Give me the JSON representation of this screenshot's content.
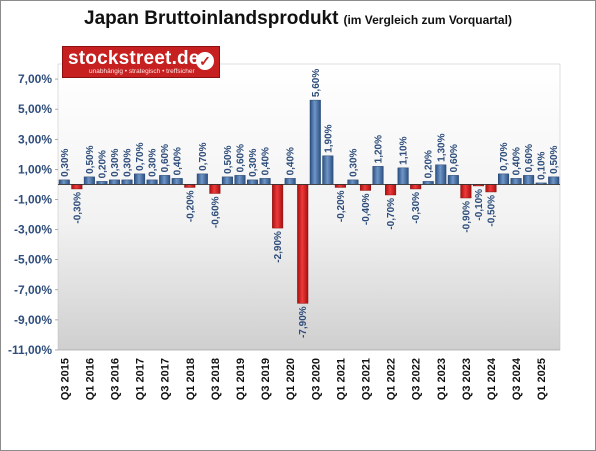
{
  "title": "Japan Bruttoinlandsprodukt",
  "subtitle": "(im Vergleich zum Vorquartal)",
  "logo": {
    "brand": "stockstreet.de",
    "tagline": "unabhängig • strategisch • treffsicher",
    "icon": "check-icon"
  },
  "colors": {
    "positive": "#3d6aa3",
    "negative": "#d11a1a",
    "label": "#2e4d7b"
  },
  "chart_data": {
    "type": "bar",
    "title": "Japan Bruttoinlandsprodukt",
    "subtitle": "(im Vergleich zum Vorquartal)",
    "xlabel": "",
    "ylabel": "",
    "ylim": [
      -11,
      8
    ],
    "yticks": [
      7,
      5,
      3,
      1,
      -1,
      -3,
      -5,
      -7,
      -9,
      -11
    ],
    "ytick_labels": [
      "7,00%",
      "5,00%",
      "3,00%",
      "1,00%",
      "-1,00%",
      "-3,00%",
      "-5,00%",
      "-7,00%",
      "-9,00%",
      "-11,00%"
    ],
    "grid": false,
    "categories": [
      "Q3 2015",
      "Q4 2015",
      "Q1 2016",
      "Q2 2016",
      "Q3 2016",
      "Q4 2016",
      "Q1 2017",
      "Q2 2017",
      "Q3 2017",
      "Q4 2017",
      "Q1 2018",
      "Q2 2018",
      "Q3 2018",
      "Q4 2018",
      "Q1 2019",
      "Q2 2019",
      "Q3 2019",
      "Q4 2019",
      "Q1 2020",
      "Q2 2020",
      "Q3 2020",
      "Q4 2020",
      "Q1 2021",
      "Q2 2021",
      "Q3 2021",
      "Q4 2021",
      "Q1 2022",
      "Q2 2022",
      "Q3 2022",
      "Q4 2022",
      "Q1 2023",
      "Q2 2023",
      "Q3 2023",
      "Q4 2023",
      "Q1 2024",
      "Q2 2024",
      "Q3 2024",
      "Q4 2024",
      "Q1 2025",
      "Q2 2025"
    ],
    "tick_labels": [
      "Q3 2015",
      "",
      "Q1 2016",
      "",
      "Q3 2016",
      "",
      "Q1 2017",
      "",
      "Q3 2017",
      "",
      "Q1 2018",
      "",
      "Q3 2018",
      "",
      "Q1 2019",
      "",
      "Q3 2019",
      "",
      "Q1 2020",
      "",
      "Q3 2020",
      "",
      "Q1 2021",
      "",
      "Q3 2021",
      "",
      "Q1 2022",
      "",
      "Q3 2022",
      "",
      "Q1 2023",
      "",
      "Q3 2023",
      "",
      "Q1 2024",
      "",
      "Q3 2024",
      "",
      "Q1 2025",
      ""
    ],
    "values": [
      0.3,
      -0.3,
      0.5,
      0.2,
      0.3,
      0.3,
      0.7,
      0.3,
      0.6,
      0.4,
      -0.2,
      0.7,
      -0.6,
      0.5,
      0.6,
      0.3,
      0.4,
      -2.9,
      0.4,
      -7.9,
      5.6,
      1.9,
      -0.2,
      0.3,
      -0.4,
      1.2,
      -0.7,
      1.1,
      -0.3,
      0.2,
      1.3,
      0.6,
      -0.9,
      -0.1,
      -0.5,
      0.7,
      0.4,
      0.6,
      0.1,
      0.5
    ],
    "data_labels": [
      "0,30%",
      "-0,30%",
      "0,50%",
      "0,20%",
      "0,30%",
      "0,30%",
      "0,70%",
      "0,30%",
      "0,60%",
      "0,40%",
      "-0,20%",
      "0,70%",
      "-0,60%",
      "0,50%",
      "0,60%",
      "0,30%",
      "0,40%",
      "-2,90%",
      "0,40%",
      "-7,90%",
      "5,60%",
      "1,90%",
      "-0,20%",
      "0,30%",
      "-0,40%",
      "1,20%",
      "-0,70%",
      "1,10%",
      "-0,30%",
      "0,20%",
      "1,30%",
      "0,60%",
      "-0,90%",
      "-0,10%",
      "-0,50%",
      "0,70%",
      "0,40%",
      "0,60%",
      "0,10%",
      "0,50%"
    ]
  }
}
